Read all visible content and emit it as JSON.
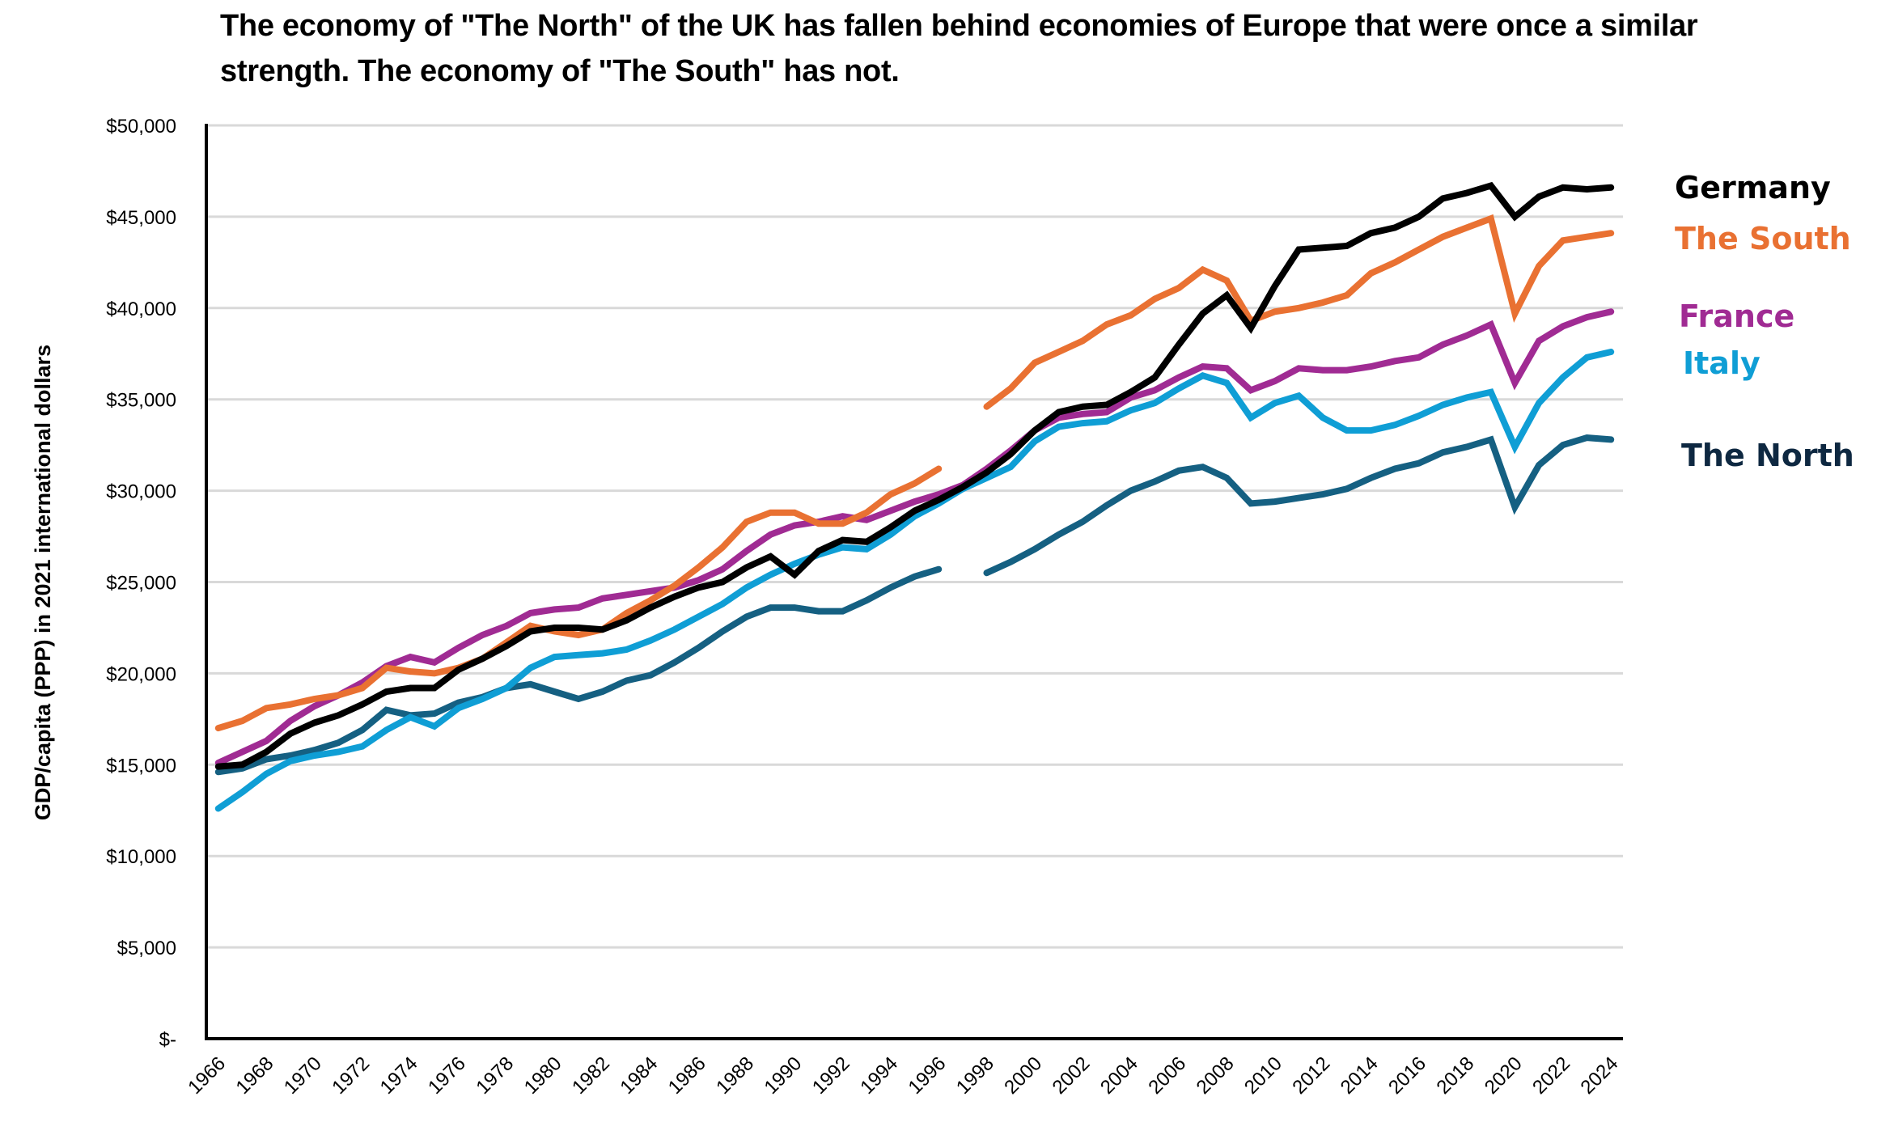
{
  "chart_data": {
    "type": "line",
    "title": "The economy of \"The North\" of the UK has fallen behind economies of Europe that were once a similar strength. The economy of \"The South\" has not.",
    "xlabel": "",
    "ylabel": "GDP/capita (PPP) in 2021 international dollars",
    "ylim": [
      0,
      50000
    ],
    "y_ticks": [
      0,
      5000,
      10000,
      15000,
      20000,
      25000,
      30000,
      35000,
      40000,
      45000,
      50000
    ],
    "y_tick_labels": [
      "$-",
      "$5,000",
      "$10,000",
      "$15,000",
      "$20,000",
      "$25,000",
      "$30,000",
      "$35,000",
      "$40,000",
      "$45,000",
      "$50,000"
    ],
    "x": [
      1966,
      1967,
      1968,
      1969,
      1970,
      1971,
      1972,
      1973,
      1974,
      1975,
      1976,
      1977,
      1978,
      1979,
      1980,
      1981,
      1982,
      1983,
      1984,
      1985,
      1986,
      1987,
      1988,
      1989,
      1990,
      1991,
      1992,
      1993,
      1994,
      1995,
      1996,
      1997,
      1998,
      1999,
      2000,
      2001,
      2002,
      2003,
      2004,
      2005,
      2006,
      2007,
      2008,
      2009,
      2010,
      2011,
      2012,
      2013,
      2014,
      2015,
      2016,
      2017,
      2018,
      2019,
      2020,
      2021,
      2022,
      2023,
      2024
    ],
    "x_tick_labels": [
      "1966",
      "1968",
      "1970",
      "1972",
      "1974",
      "1976",
      "1978",
      "1980",
      "1982",
      "1984",
      "1986",
      "1988",
      "1990",
      "1992",
      "1994",
      "1996",
      "1998",
      "2000",
      "2002",
      "2004",
      "2006",
      "2008",
      "2010",
      "2012",
      "2014",
      "2016",
      "2018",
      "2020",
      "2022",
      "2024"
    ],
    "grid": true,
    "legend_placement": "right (inline labels at line ends)",
    "series": [
      {
        "name": "Germany",
        "color": "#000000",
        "values": [
          14900,
          15000,
          15700,
          16700,
          17300,
          17700,
          18300,
          19000,
          19200,
          19200,
          20200,
          20800,
          21500,
          22300,
          22500,
          22500,
          22400,
          22900,
          23600,
          24200,
          24700,
          25000,
          25800,
          26400,
          25400,
          26700,
          27300,
          27200,
          28000,
          28900,
          29500,
          30200,
          31000,
          32000,
          33300,
          34300,
          34600,
          34700,
          35400,
          36200,
          38000,
          39700,
          40700,
          38900,
          41200,
          43200,
          43300,
          43400,
          44100,
          44400,
          45000,
          46000,
          46300,
          46700,
          45000,
          46100,
          46600,
          46500,
          46600
        ]
      },
      {
        "name": "The South",
        "color": "#E97132",
        "values": [
          17000,
          17400,
          18100,
          18300,
          18600,
          18800,
          19200,
          20300,
          20100,
          20000,
          20300,
          20800,
          21700,
          22600,
          22300,
          22100,
          22400,
          23300,
          24000,
          24800,
          25800,
          26900,
          28300,
          28800,
          28800,
          28200,
          28200,
          28800,
          29800,
          30400,
          31200,
          null,
          34600,
          35600,
          37000,
          37600,
          38200,
          39100,
          39600,
          40500,
          41100,
          42100,
          41500,
          39300,
          39800,
          40000,
          40300,
          40700,
          41900,
          42500,
          43200,
          43900,
          44400,
          44900,
          39700,
          42300,
          43700,
          43900,
          44100
        ]
      },
      {
        "name": "France",
        "color": "#A02B93",
        "values": [
          15100,
          15700,
          16300,
          17400,
          18200,
          18800,
          19500,
          20400,
          20900,
          20600,
          21400,
          22100,
          22600,
          23300,
          23500,
          23600,
          24100,
          24300,
          24500,
          24700,
          25100,
          25700,
          26700,
          27600,
          28100,
          28300,
          28600,
          28400,
          28900,
          29400,
          29800,
          30300,
          31200,
          32200,
          33300,
          34000,
          34200,
          34300,
          35100,
          35500,
          36200,
          36800,
          36700,
          35500,
          36000,
          36700,
          36600,
          36600,
          36800,
          37100,
          37300,
          38000,
          38500,
          39100,
          35900,
          38200,
          39000,
          39500,
          39800
        ]
      },
      {
        "name": "Italy",
        "color": "#0F9ED5",
        "values": [
          12600,
          13500,
          14500,
          15200,
          15500,
          15700,
          16000,
          16900,
          17600,
          17100,
          18100,
          18600,
          19200,
          20300,
          20900,
          21000,
          21100,
          21300,
          21800,
          22400,
          23100,
          23800,
          24700,
          25400,
          26000,
          26500,
          26900,
          26800,
          27600,
          28600,
          29300,
          30100,
          30700,
          31300,
          32700,
          33500,
          33700,
          33800,
          34400,
          34800,
          35600,
          36300,
          35900,
          34000,
          34800,
          35200,
          34000,
          33300,
          33300,
          33600,
          34100,
          34700,
          35100,
          35400,
          32400,
          34800,
          36200,
          37300,
          37600
        ]
      },
      {
        "name": "The North",
        "color": "#156082",
        "label_color": "#0E2841",
        "values": [
          14600,
          14800,
          15300,
          15500,
          15800,
          16200,
          16900,
          18000,
          17700,
          17800,
          18400,
          18700,
          19200,
          19400,
          19000,
          18600,
          19000,
          19600,
          19900,
          20600,
          21400,
          22300,
          23100,
          23600,
          23600,
          23400,
          23400,
          24000,
          24700,
          25300,
          25700,
          null,
          25500,
          26100,
          26800,
          27600,
          28300,
          29200,
          30000,
          30500,
          31100,
          31300,
          30700,
          29300,
          29400,
          29600,
          29800,
          30100,
          30700,
          31200,
          31500,
          32100,
          32400,
          32800,
          29100,
          31400,
          32500,
          32900,
          32800
        ]
      }
    ]
  }
}
